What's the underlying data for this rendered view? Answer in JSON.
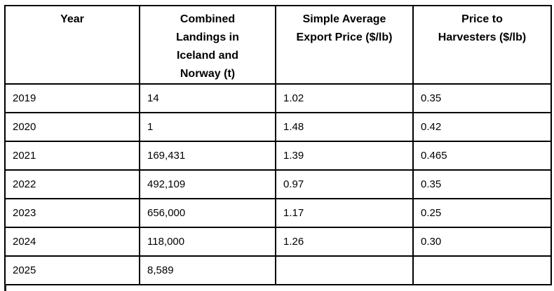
{
  "chart_data": {
    "type": "table",
    "columns": [
      "Year",
      "Combined Landings in Iceland and Norway (t)",
      "Simple Average Export Price ($/lb)",
      "Price to Harvesters ($/lb)"
    ],
    "rows": [
      [
        2019,
        14,
        1.02,
        0.35
      ],
      [
        2020,
        1,
        1.48,
        0.42
      ],
      [
        2021,
        169431,
        1.39,
        0.465
      ],
      [
        2022,
        492109,
        0.97,
        0.35
      ],
      [
        2023,
        656000,
        1.17,
        0.25
      ],
      [
        2024,
        118000,
        1.26,
        0.3
      ],
      [
        2025,
        8589,
        null,
        null
      ]
    ]
  },
  "table": {
    "header": {
      "year": "Year",
      "landings": "Combined\nLandings in\nIceland and\nNorway (t)",
      "export_price": "Simple Average\nExport Price ($/lb)",
      "harvester_price": "Price to\nHarvesters ($/lb)"
    },
    "rows": [
      {
        "year": "2019",
        "landings": "14",
        "export_price": "1.02",
        "harvester_price": "0.35"
      },
      {
        "year": "2020",
        "landings": "1",
        "export_price": "1.48",
        "harvester_price": "0.42"
      },
      {
        "year": "2021",
        "landings": "169,431",
        "export_price": "1.39",
        "harvester_price": "0.465"
      },
      {
        "year": "2022",
        "landings": "492,109",
        "export_price": "0.97",
        "harvester_price": "0.35"
      },
      {
        "year": "2023",
        "landings": "656,000",
        "export_price": "1.17",
        "harvester_price": "0.25"
      },
      {
        "year": "2024",
        "landings": "118,000",
        "export_price": "1.26",
        "harvester_price": "0.30"
      },
      {
        "year": "2025",
        "landings": "8,589",
        "export_price": "",
        "harvester_price": ""
      }
    ]
  },
  "colors": {
    "border": "#000000",
    "text": "#000000",
    "background": "#ffffff"
  }
}
